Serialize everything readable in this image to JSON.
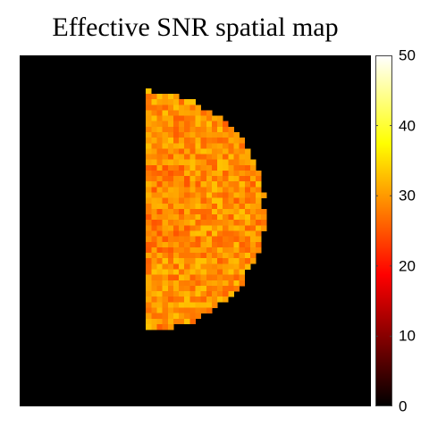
{
  "chart_data": {
    "type": "heatmap",
    "title": "Effective SNR spatial map",
    "colormap": "hot",
    "clim": [
      0,
      50
    ],
    "colorbar_ticks": [
      0,
      10,
      20,
      30,
      40,
      50
    ],
    "grid_size": [
      64,
      64
    ],
    "background_value": 0,
    "region": {
      "shape": "half-disc",
      "value_range": [
        25,
        33
      ],
      "mean_value": 29.5
    }
  }
}
